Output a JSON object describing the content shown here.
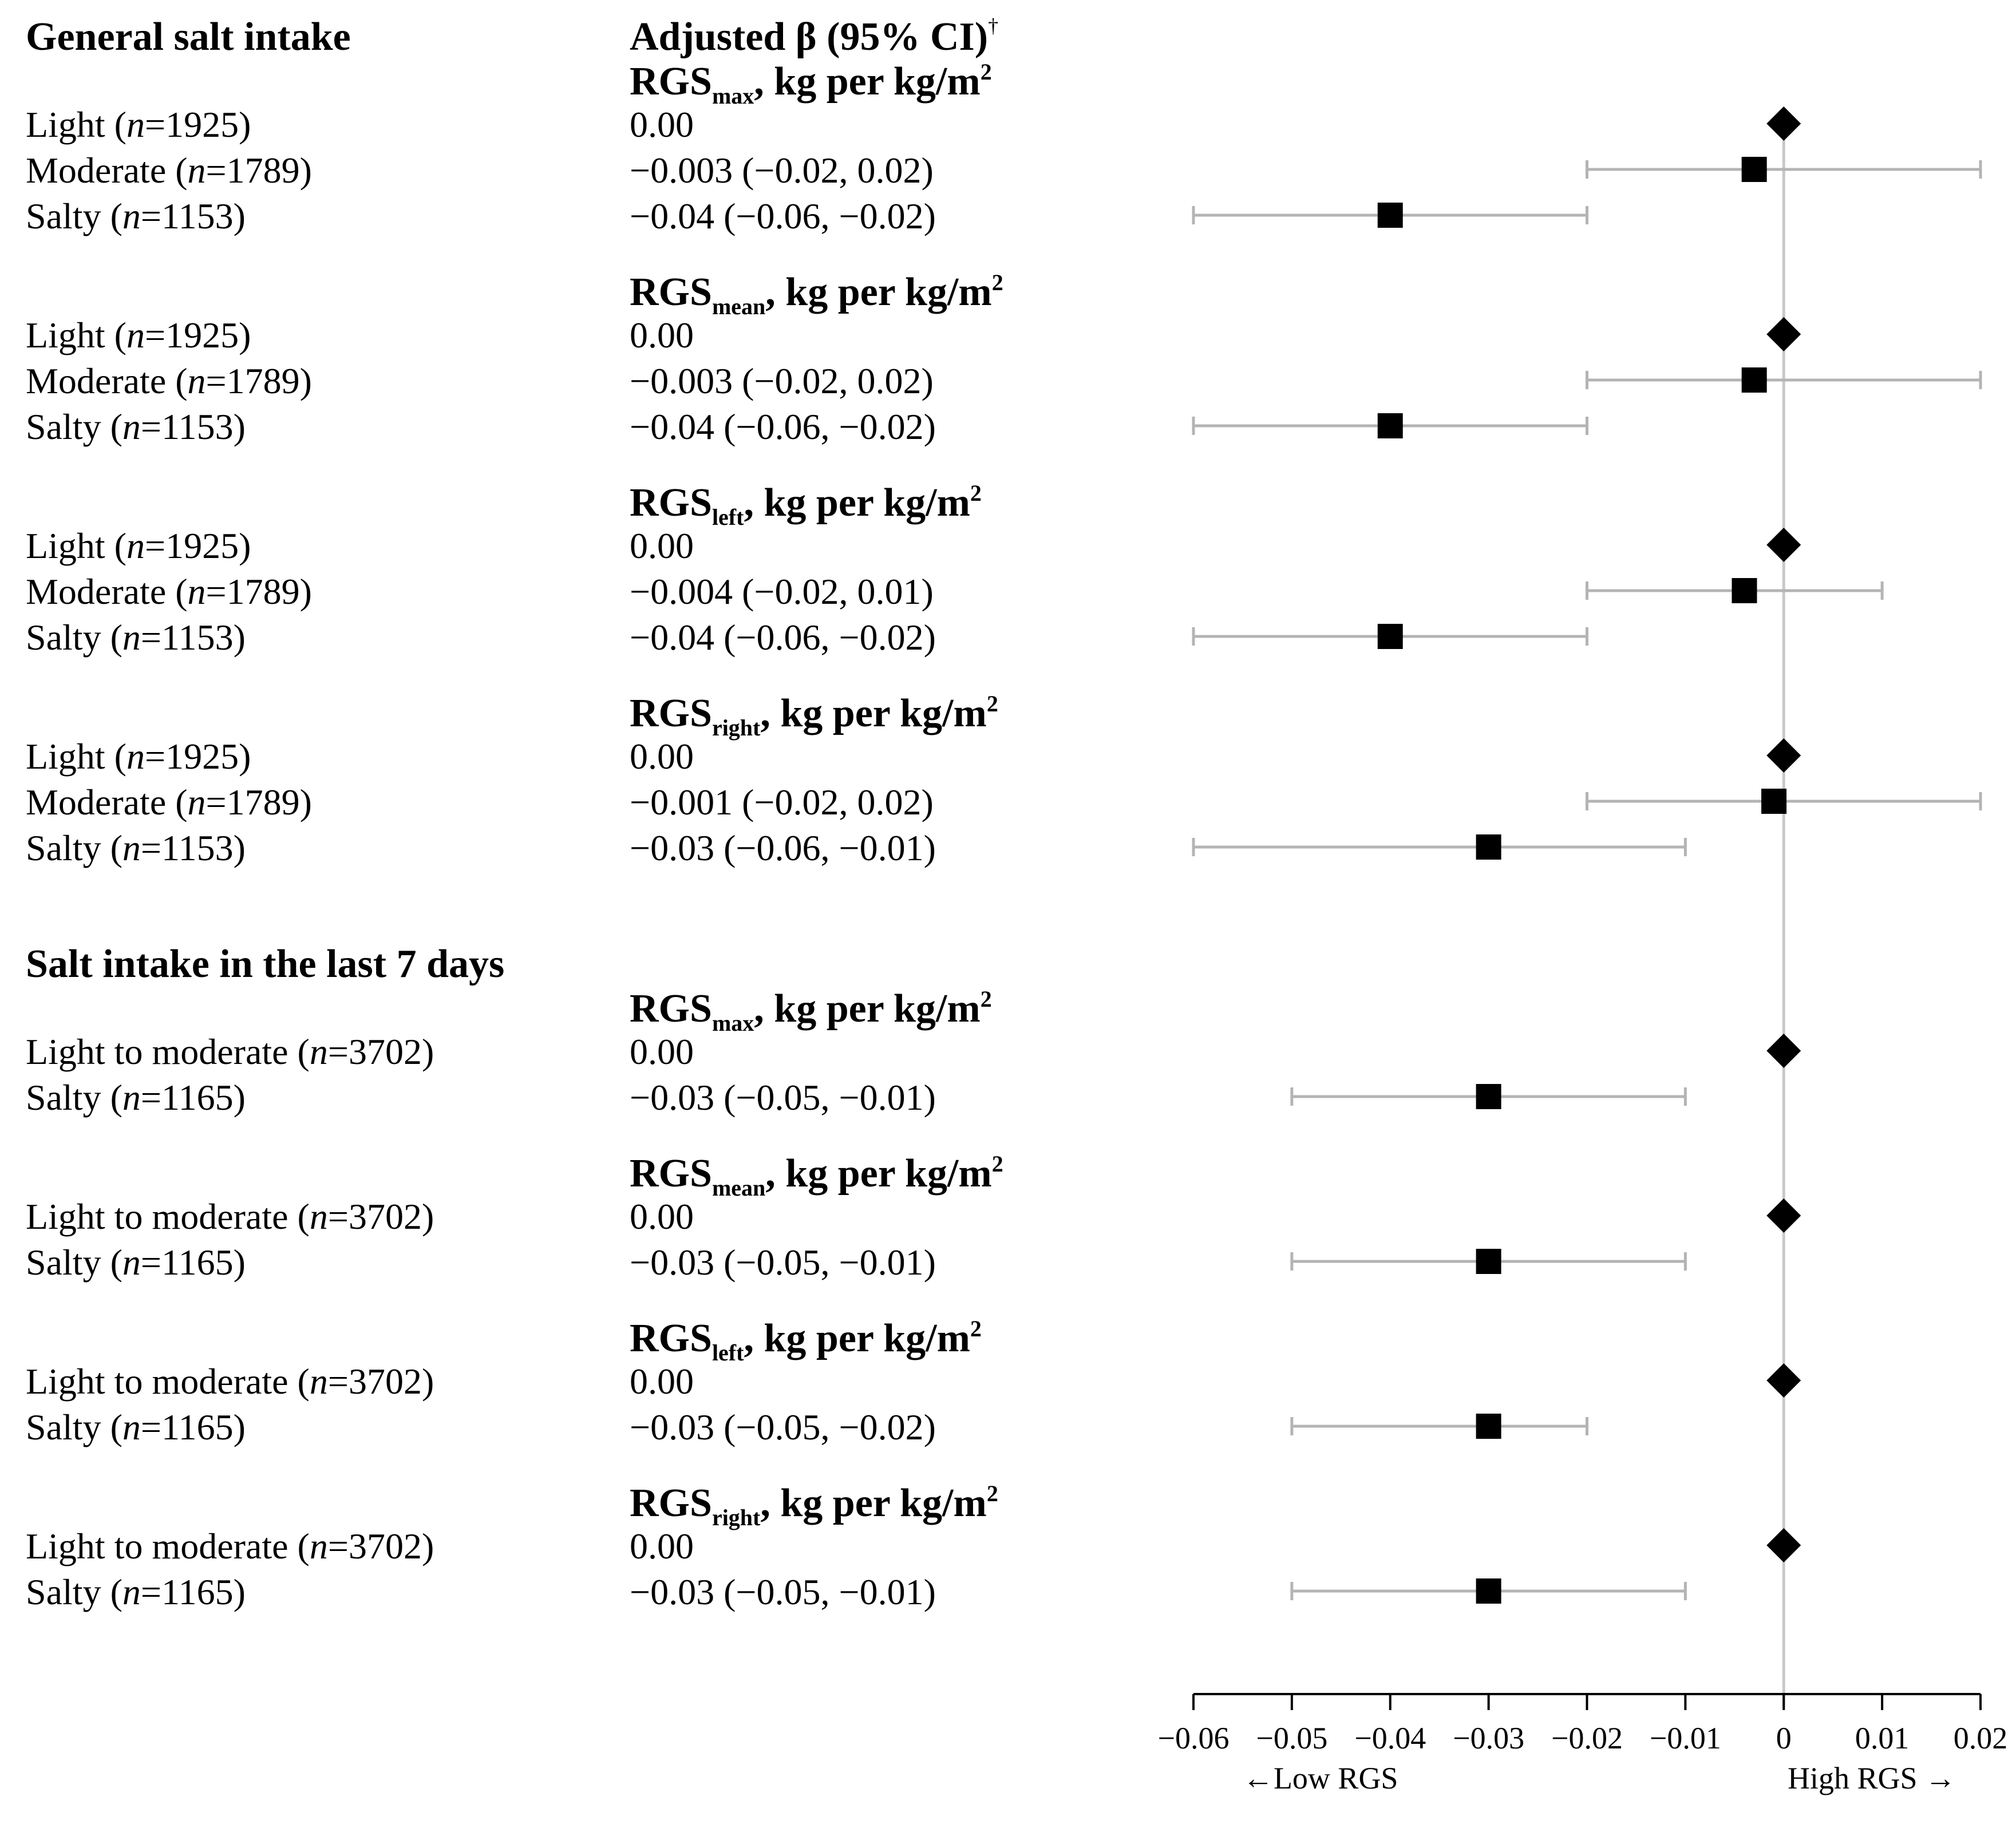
{
  "chart_data": {
    "type": "forest",
    "column_header": "Adjusted β (95% CI)",
    "column_header_mark": "†",
    "x_ticks": [
      "−0.06",
      "−0.05",
      "−0.04",
      "−0.03",
      "−0.02",
      "−0.01",
      "0",
      "0.01",
      "0.02"
    ],
    "x_tick_values": [
      -0.06,
      -0.05,
      -0.04,
      -0.03,
      -0.02,
      -0.01,
      0,
      0.01,
      0.02
    ],
    "xlim": [
      -0.06,
      0.02
    ],
    "reference_line": 0,
    "left_arrow_label": "←Low RGS",
    "right_arrow_label": "High RGS →",
    "sections": [
      {
        "title": "General salt intake",
        "measures": [
          {
            "name_main": "RGS",
            "name_sub": "max",
            "name_rest": ", kg per kg/m",
            "name_sup": "2",
            "rows": [
              {
                "label": "Light",
                "n": "1925",
                "text": "0.00",
                "beta": 0,
                "ref": true
              },
              {
                "label": "Moderate",
                "n": "1789",
                "text": "−0.003 (−0.02, 0.02)",
                "beta": -0.003,
                "lo": -0.02,
                "hi": 0.02
              },
              {
                "label": "Salty",
                "n": "1153",
                "text": "−0.04 (−0.06, −0.02)",
                "beta": -0.04,
                "lo": -0.06,
                "hi": -0.02
              }
            ]
          },
          {
            "name_main": "RGS",
            "name_sub": "mean",
            "name_rest": ", kg per kg/m",
            "name_sup": "2",
            "rows": [
              {
                "label": "Light",
                "n": "1925",
                "text": "0.00",
                "beta": 0,
                "ref": true
              },
              {
                "label": "Moderate",
                "n": "1789",
                "text": "−0.003 (−0.02, 0.02)",
                "beta": -0.003,
                "lo": -0.02,
                "hi": 0.02
              },
              {
                "label": "Salty",
                "n": "1153",
                "text": "−0.04 (−0.06, −0.02)",
                "beta": -0.04,
                "lo": -0.06,
                "hi": -0.02
              }
            ]
          },
          {
            "name_main": "RGS",
            "name_sub": "left",
            "name_rest": ", kg per kg/m",
            "name_sup": "2",
            "rows": [
              {
                "label": "Light",
                "n": "1925",
                "text": "0.00",
                "beta": 0,
                "ref": true
              },
              {
                "label": "Moderate",
                "n": "1789",
                "text": "−0.004 (−0.02, 0.01)",
                "beta": -0.004,
                "lo": -0.02,
                "hi": 0.01
              },
              {
                "label": "Salty",
                "n": "1153",
                "text": "−0.04 (−0.06, −0.02)",
                "beta": -0.04,
                "lo": -0.06,
                "hi": -0.02
              }
            ]
          },
          {
            "name_main": "RGS",
            "name_sub": "right",
            "name_rest": ", kg per kg/m",
            "name_sup": "2",
            "rows": [
              {
                "label": "Light",
                "n": "1925",
                "text": "0.00",
                "beta": 0,
                "ref": true
              },
              {
                "label": "Moderate",
                "n": "1789",
                "text": "−0.001 (−0.02, 0.02)",
                "beta": -0.001,
                "lo": -0.02,
                "hi": 0.02
              },
              {
                "label": "Salty",
                "n": "1153",
                "text": "−0.03 (−0.06, −0.01)",
                "beta": -0.03,
                "lo": -0.06,
                "hi": -0.01
              }
            ]
          }
        ]
      },
      {
        "title": "Salt intake in the last 7 days",
        "measures": [
          {
            "name_main": "RGS",
            "name_sub": "max",
            "name_rest": ", kg per kg/m",
            "name_sup": "2",
            "rows": [
              {
                "label": "Light to moderate",
                "n": "3702",
                "text": "0.00",
                "beta": 0,
                "ref": true
              },
              {
                "label": "Salty",
                "n": "1165",
                "text": "−0.03 (−0.05, −0.01)",
                "beta": -0.03,
                "lo": -0.05,
                "hi": -0.01
              }
            ]
          },
          {
            "name_main": "RGS",
            "name_sub": "mean",
            "name_rest": ", kg per kg/m",
            "name_sup": "2",
            "rows": [
              {
                "label": "Light to moderate",
                "n": "3702",
                "text": "0.00",
                "beta": 0,
                "ref": true
              },
              {
                "label": "Salty",
                "n": "1165",
                "text": "−0.03 (−0.05, −0.01)",
                "beta": -0.03,
                "lo": -0.05,
                "hi": -0.01
              }
            ]
          },
          {
            "name_main": "RGS",
            "name_sub": "left",
            "name_rest": ", kg per kg/m",
            "name_sup": "2",
            "rows": [
              {
                "label": "Light to moderate",
                "n": "3702",
                "text": "0.00",
                "beta": 0,
                "ref": true
              },
              {
                "label": "Salty",
                "n": "1165",
                "text": "−0.03 (−0.05, −0.02)",
                "beta": -0.03,
                "lo": -0.05,
                "hi": -0.02
              }
            ]
          },
          {
            "name_main": "RGS",
            "name_sub": "right",
            "name_rest": ", kg per kg/m",
            "name_sup": "2",
            "rows": [
              {
                "label": "Light to moderate",
                "n": "3702",
                "text": "0.00",
                "beta": 0,
                "ref": true
              },
              {
                "label": "Salty",
                "n": "1165",
                "text": "−0.03 (−0.05, −0.01)",
                "beta": -0.03,
                "lo": -0.05,
                "hi": -0.01
              }
            ]
          }
        ]
      }
    ]
  }
}
